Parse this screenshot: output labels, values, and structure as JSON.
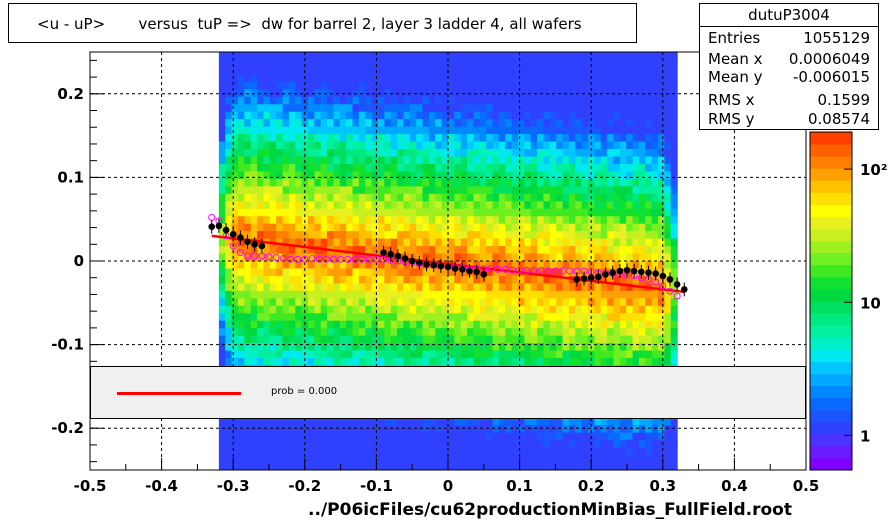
{
  "title": "<u - uP>       versus  tuP =>  dw for barrel 2, layer 3 ladder 4, all wafers",
  "stats": {
    "name": "dutuP3004",
    "rows": [
      {
        "label": "Entries",
        "value": "1055129"
      },
      {
        "label": "Mean x",
        "value": "0.0006049"
      },
      {
        "label": "Mean y",
        "value": "-0.006015"
      },
      {
        "label": "RMS x",
        "value": "0.1599"
      },
      {
        "label": "RMS y",
        "value": "0.08574"
      }
    ]
  },
  "legend": {
    "text": "prob = 0.000"
  },
  "footer": "../P06icFiles/cu62productionMinBias_FullField.root",
  "colors": {
    "fit_line": "#ff0000",
    "black_points": "#000000",
    "open_points": "#ff00ff"
  },
  "chart_data": {
    "type": "heatmap",
    "xlim": [
      -0.5,
      0.5
    ],
    "ylim": [
      -0.25,
      0.25
    ],
    "grid": true,
    "x_ticks": [
      "-0.5",
      "-0.4",
      "-0.3",
      "-0.2",
      "-0.1",
      "0",
      "0.1",
      "0.2",
      "0.3",
      "0.4",
      "0.5"
    ],
    "x_tick_values": [
      -0.5,
      -0.4,
      -0.3,
      -0.2,
      -0.1,
      0,
      0.1,
      0.2,
      0.3,
      0.4,
      0.5
    ],
    "y_ticks": [
      "0.2",
      "0.1",
      "0",
      "-0.1",
      "-0.2"
    ],
    "y_tick_values": [
      0.2,
      0.1,
      0,
      -0.1,
      -0.2
    ],
    "color_scale": {
      "type": "log",
      "labels": [
        "1",
        "10",
        "10²"
      ],
      "label_values": [
        1,
        10,
        100
      ]
    },
    "density_x_range": [
      -0.32,
      0.32
    ],
    "fit_line": {
      "x": [
        -0.33,
        0.33
      ],
      "y": [
        0.03,
        -0.037
      ]
    },
    "profile_black": {
      "x": [
        -0.33,
        -0.32,
        -0.31,
        -0.3,
        -0.29,
        -0.28,
        -0.27,
        -0.26,
        -0.09,
        -0.08,
        -0.07,
        -0.06,
        -0.05,
        -0.04,
        -0.03,
        -0.02,
        -0.01,
        0.0,
        0.01,
        0.02,
        0.03,
        0.04,
        0.05,
        0.18,
        0.19,
        0.2,
        0.21,
        0.22,
        0.23,
        0.24,
        0.25,
        0.26,
        0.27,
        0.28,
        0.29,
        0.3,
        0.31,
        0.32,
        0.33
      ],
      "y": [
        0.041,
        0.042,
        0.037,
        0.032,
        0.028,
        0.023,
        0.02,
        0.018,
        0.01,
        0.008,
        0.006,
        0.003,
        0.0,
        -0.002,
        -0.004,
        -0.005,
        -0.006,
        -0.007,
        -0.009,
        -0.01,
        -0.012,
        -0.013,
        -0.016,
        -0.022,
        -0.021,
        -0.02,
        -0.019,
        -0.016,
        -0.014,
        -0.012,
        -0.011,
        -0.012,
        -0.013,
        -0.014,
        -0.015,
        -0.018,
        -0.022,
        -0.028,
        -0.034
      ]
    },
    "profile_open": {
      "x": [
        -0.33,
        -0.32,
        -0.31,
        -0.3,
        -0.29,
        -0.28,
        -0.27,
        -0.26,
        -0.25,
        -0.24,
        -0.23,
        -0.22,
        -0.21,
        -0.2,
        -0.19,
        -0.18,
        -0.17,
        -0.16,
        -0.15,
        -0.14,
        -0.13,
        -0.12,
        -0.11,
        -0.1,
        -0.09,
        -0.08,
        -0.07,
        -0.06,
        -0.05,
        -0.04,
        -0.03,
        -0.02,
        -0.01,
        0.0,
        0.01,
        0.02,
        0.03,
        0.04,
        0.05,
        0.06,
        0.07,
        0.08,
        0.09,
        0.1,
        0.11,
        0.12,
        0.13,
        0.14,
        0.15,
        0.16,
        0.17,
        0.18,
        0.19,
        0.2,
        0.21,
        0.22,
        0.23,
        0.24,
        0.25,
        0.26,
        0.27,
        0.28,
        0.29,
        0.3,
        0.31,
        0.32
      ],
      "y": [
        0.052,
        0.048,
        0.03,
        0.018,
        0.01,
        0.006,
        0.006,
        0.006,
        0.005,
        0.004,
        0.003,
        0.002,
        0.002,
        0.002,
        0.003,
        0.002,
        0.002,
        0.002,
        0.002,
        0.002,
        0.002,
        0.002,
        0.002,
        0.002,
        0.002,
        0.001,
        0.0,
        -0.001,
        -0.002,
        -0.003,
        -0.004,
        -0.005,
        -0.006,
        -0.007,
        -0.008,
        -0.009,
        -0.009,
        -0.009,
        -0.009,
        -0.009,
        -0.01,
        -0.01,
        -0.011,
        -0.011,
        -0.011,
        -0.011,
        -0.011,
        -0.012,
        -0.012,
        -0.012,
        -0.012,
        -0.012,
        -0.012,
        -0.013,
        -0.014,
        -0.014,
        -0.015,
        -0.016,
        -0.017,
        -0.018,
        -0.02,
        -0.022,
        -0.025,
        -0.03,
        -0.036,
        -0.042
      ]
    }
  }
}
